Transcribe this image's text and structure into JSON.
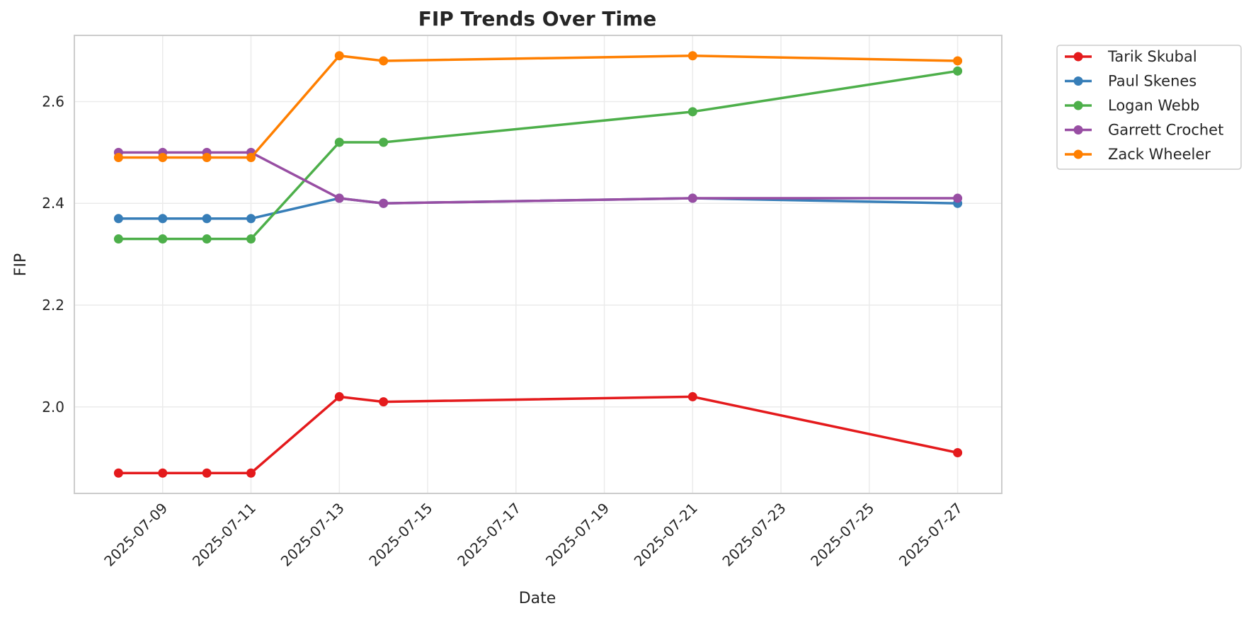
{
  "chart_data": {
    "type": "line",
    "title": "FIP Trends Over Time",
    "xlabel": "Date",
    "ylabel": "FIP",
    "x_axis_type": "date",
    "xlim": [
      "2025-07-07",
      "2025-07-28"
    ],
    "ylim": [
      1.83,
      2.73
    ],
    "x_ticks": [
      "2025-07-09",
      "2025-07-11",
      "2025-07-13",
      "2025-07-15",
      "2025-07-17",
      "2025-07-19",
      "2025-07-21",
      "2025-07-23",
      "2025-07-25",
      "2025-07-27"
    ],
    "y_ticks": [
      "2.0",
      "2.2",
      "2.4",
      "2.6"
    ],
    "grid": true,
    "legend_position": "outside-top-right",
    "x": [
      "2025-07-08",
      "2025-07-09",
      "2025-07-10",
      "2025-07-11",
      "2025-07-13",
      "2025-07-14",
      "2025-07-21",
      "2025-07-27"
    ],
    "series": [
      {
        "name": "Tarik Skubal",
        "color": "#e41a1c",
        "values": [
          1.87,
          1.87,
          1.87,
          1.87,
          2.02,
          2.01,
          2.02,
          1.91
        ]
      },
      {
        "name": "Paul Skenes",
        "color": "#377eb8",
        "values": [
          2.37,
          2.37,
          2.37,
          2.37,
          2.41,
          2.4,
          2.41,
          2.4
        ]
      },
      {
        "name": "Logan Webb",
        "color": "#4daf4a",
        "values": [
          2.33,
          2.33,
          2.33,
          2.33,
          2.52,
          2.52,
          2.58,
          2.66
        ]
      },
      {
        "name": "Garrett Crochet",
        "color": "#984ea3",
        "values": [
          2.5,
          2.5,
          2.5,
          2.5,
          2.41,
          2.4,
          2.41,
          2.41
        ]
      },
      {
        "name": "Zack Wheeler",
        "color": "#ff7f00",
        "values": [
          2.49,
          2.49,
          2.49,
          2.49,
          2.69,
          2.68,
          2.69,
          2.68
        ]
      }
    ]
  }
}
